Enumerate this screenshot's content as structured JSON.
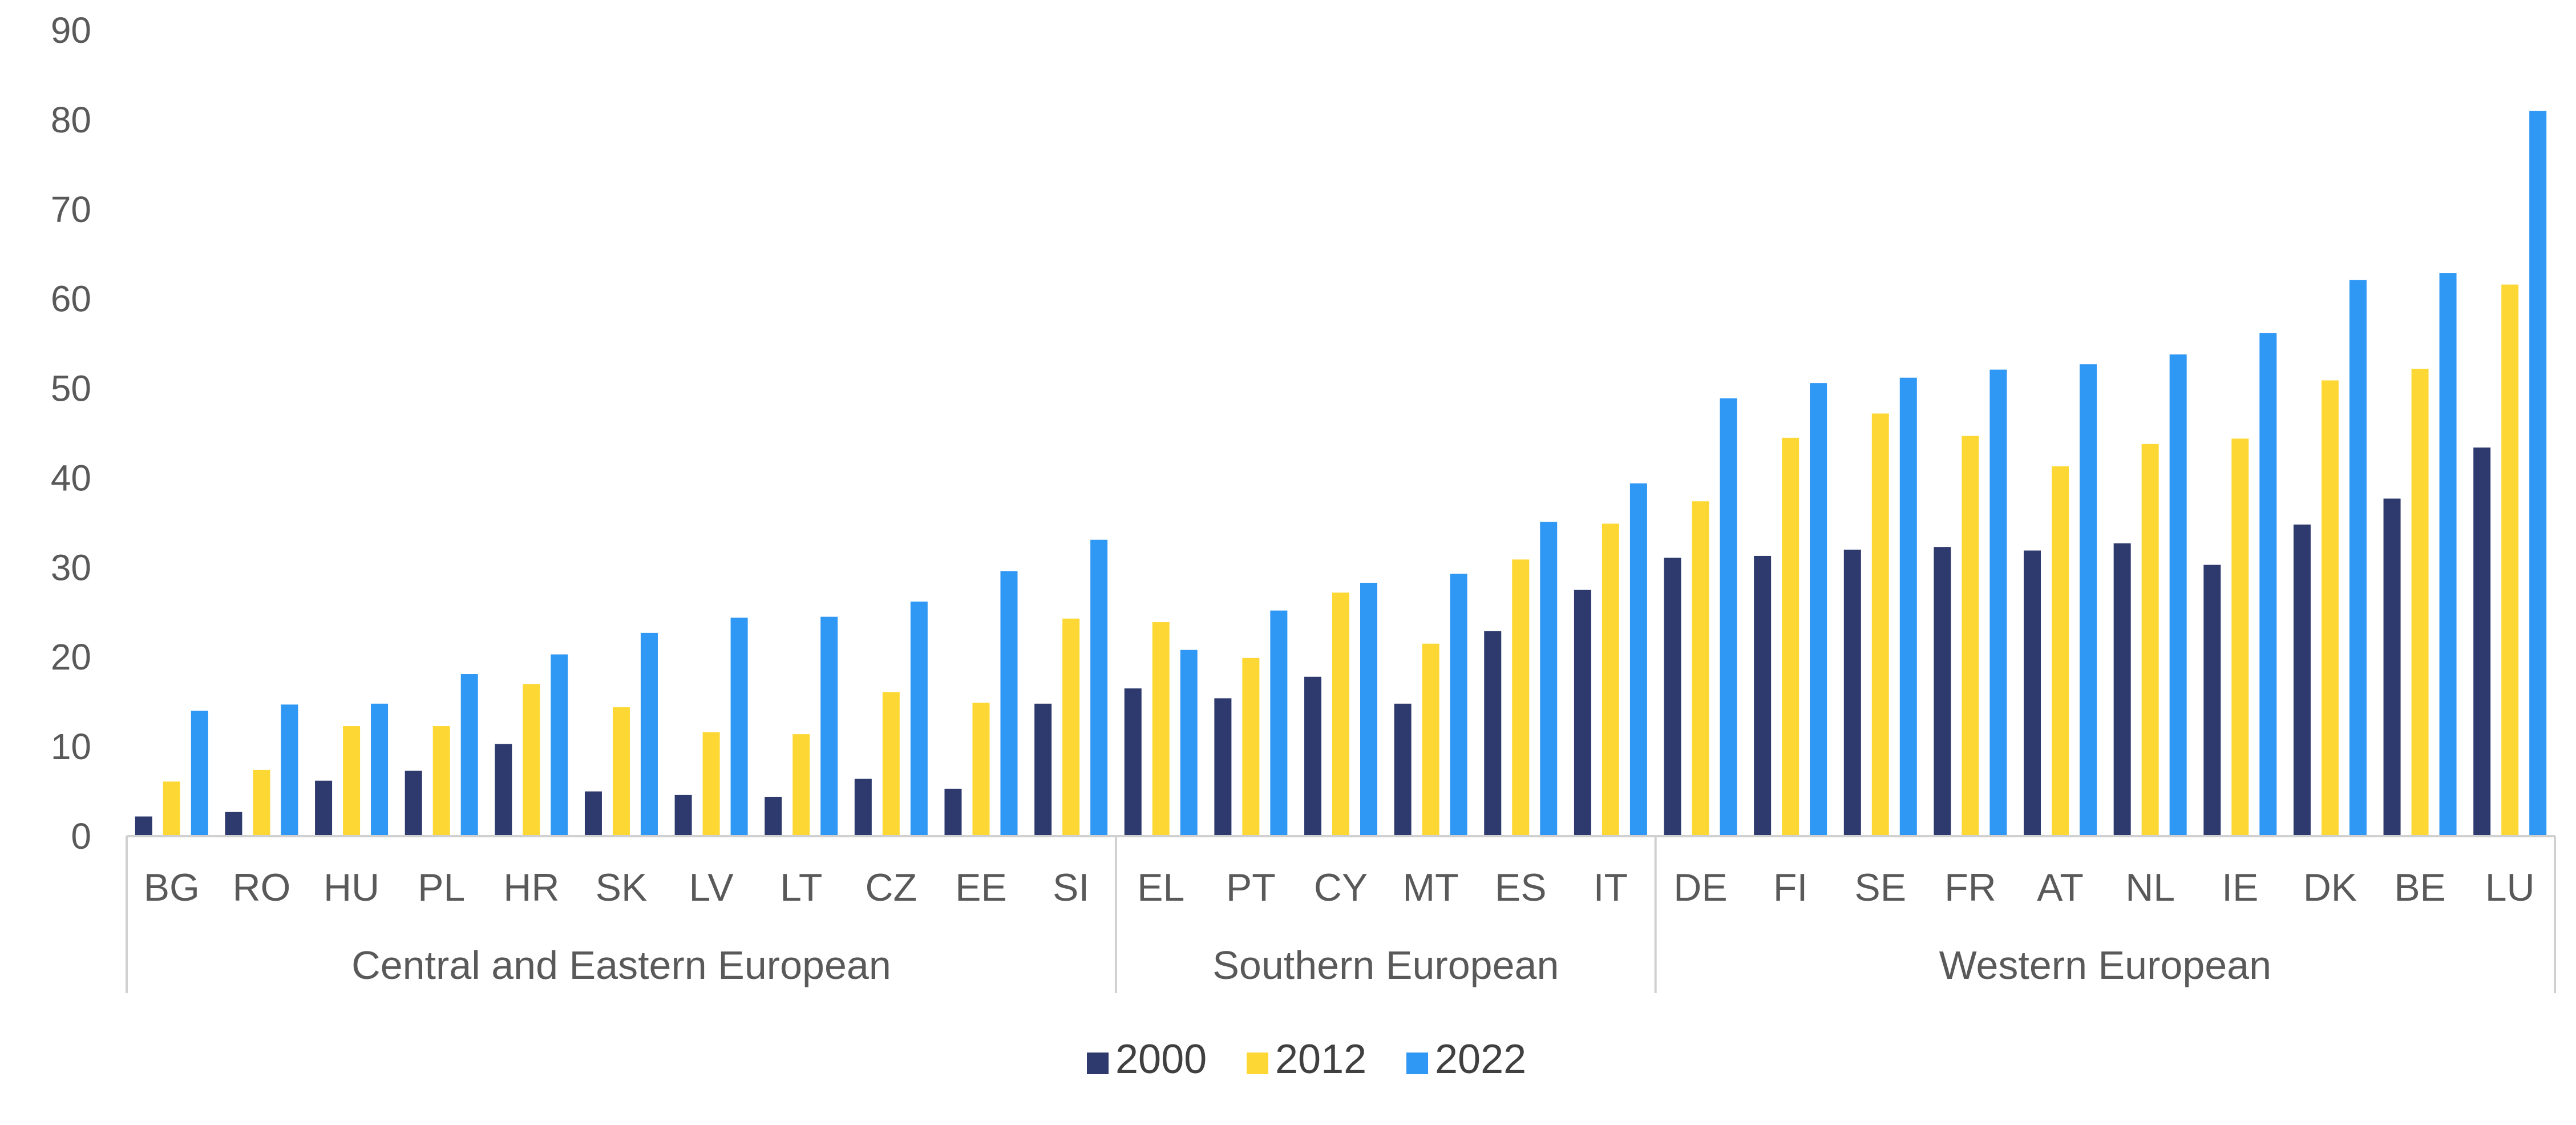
{
  "chart_data": {
    "type": "bar",
    "title": "",
    "xlabel": "",
    "ylabel": "",
    "ylim": [
      0,
      90
    ],
    "yticks": [
      0,
      10,
      20,
      30,
      40,
      50,
      60,
      70,
      80,
      90
    ],
    "grid": false,
    "legend_position": "bottom",
    "categories": [
      "BG",
      "RO",
      "HU",
      "PL",
      "HR",
      "SK",
      "LV",
      "LT",
      "CZ",
      "EE",
      "SI",
      "EL",
      "PT",
      "CY",
      "MT",
      "ES",
      "IT",
      "DE",
      "FI",
      "SE",
      "FR",
      "AT",
      "NL",
      "IE",
      "DK",
      "BE",
      "LU"
    ],
    "groups": [
      {
        "name": "Central and Eastern European",
        "count": 11
      },
      {
        "name": "Southern European",
        "count": 6
      },
      {
        "name": "Western European",
        "count": 10
      }
    ],
    "series": [
      {
        "name": "2000",
        "color": "#2e3a6e",
        "values": [
          2.2,
          2.7,
          6.2,
          7.3,
          10.3,
          5.0,
          4.6,
          4.4,
          6.4,
          5.3,
          14.8,
          16.5,
          15.4,
          17.8,
          14.8,
          22.9,
          27.5,
          31.1,
          31.3,
          32.0,
          32.3,
          31.9,
          32.7,
          30.3,
          34.8,
          37.7,
          43.4
        ]
      },
      {
        "name": "2012",
        "color": "#fdd835",
        "values": [
          6.1,
          7.4,
          12.3,
          12.3,
          17.0,
          14.4,
          11.6,
          11.4,
          16.1,
          14.9,
          24.3,
          23.9,
          19.9,
          27.2,
          21.5,
          30.9,
          34.9,
          37.4,
          44.5,
          47.2,
          44.7,
          41.3,
          43.8,
          44.4,
          50.9,
          52.2,
          61.6
        ]
      },
      {
        "name": "2022",
        "color": "#2f97f4",
        "values": [
          14.0,
          14.7,
          14.8,
          18.1,
          20.3,
          22.7,
          24.4,
          24.5,
          26.2,
          29.6,
          33.1,
          20.8,
          25.2,
          28.3,
          29.3,
          35.1,
          39.4,
          48.9,
          50.6,
          51.2,
          52.1,
          52.7,
          53.8,
          56.2,
          62.1,
          62.9,
          81.0
        ]
      }
    ]
  }
}
